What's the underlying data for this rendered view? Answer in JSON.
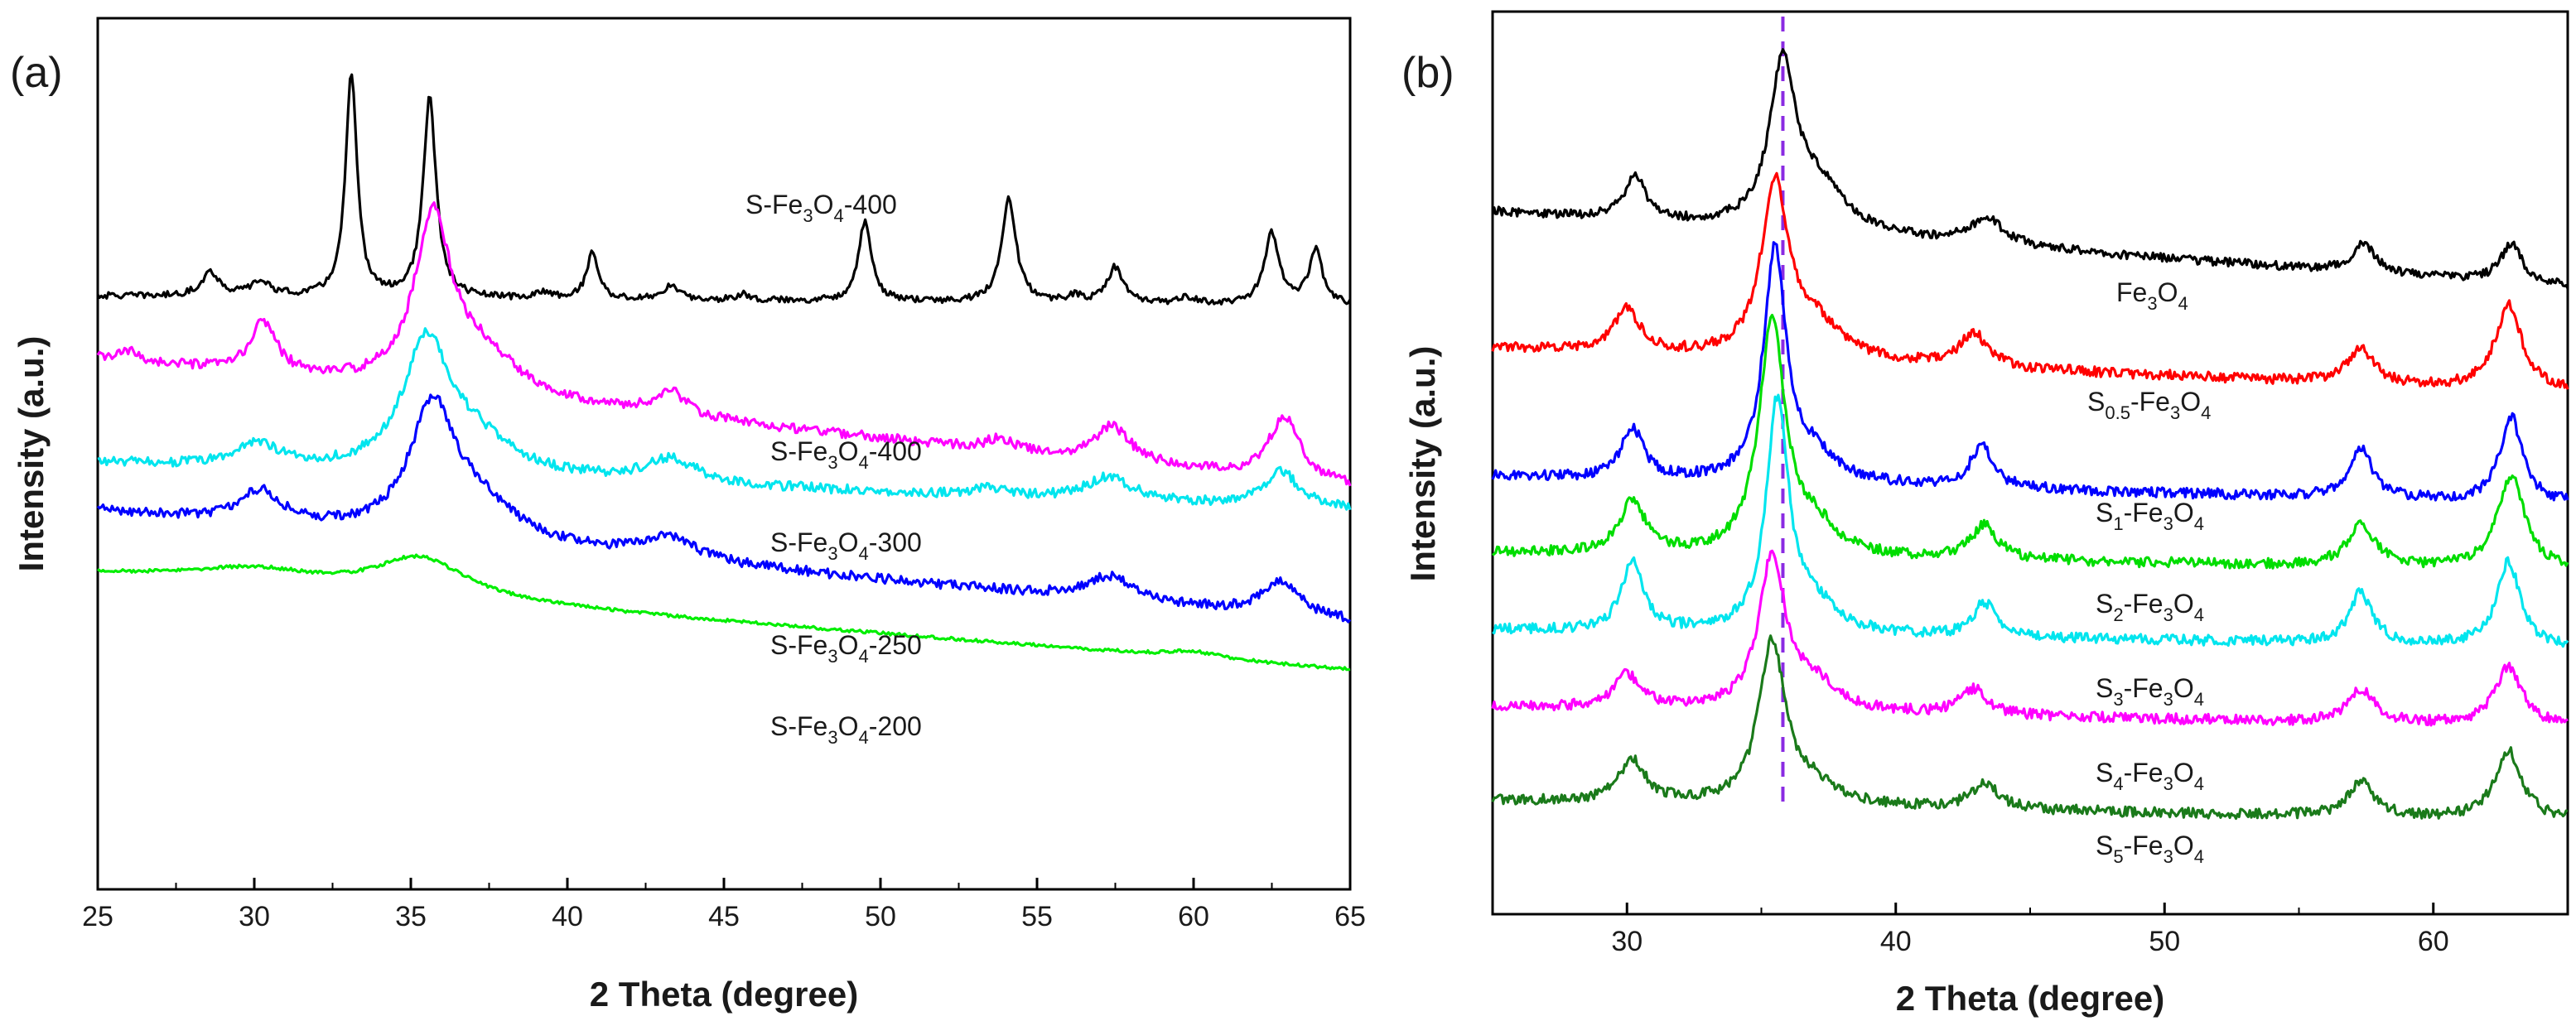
{
  "chart_data": [
    {
      "type": "line",
      "panel_label": "(a)",
      "xlabel": "2 Theta (degree)",
      "ylabel": "Intensity (a.u.)",
      "xlim": [
        25,
        65
      ],
      "x_ticks": [
        25,
        30,
        35,
        40,
        45,
        50,
        55,
        60,
        65
      ],
      "y_ticks_shown": false,
      "ylim_offset_units": [
        0,
        1
      ],
      "series": [
        {
          "label_parts": [
            "S-Fe",
            "3",
            "O",
            "4",
            "-400"
          ],
          "color": "#000000",
          "baseline": 0.69,
          "slope": -0.0003,
          "noise": 0.004,
          "peaks": [
            [
              28.6,
              0.03,
              0.35
            ],
            [
              30.2,
              0.018,
              0.4
            ],
            [
              33.1,
              0.28,
              0.22
            ],
            [
              35.6,
              0.25,
              0.25
            ],
            [
              39.3,
              0.008,
              0.3
            ],
            [
              40.8,
              0.06,
              0.22
            ],
            [
              43.3,
              0.018,
              0.3
            ],
            [
              45.6,
              0.008,
              0.3
            ],
            [
              49.5,
              0.1,
              0.25
            ],
            [
              54.1,
              0.13,
              0.28
            ],
            [
              56.2,
              0.008,
              0.3
            ],
            [
              57.5,
              0.045,
              0.3
            ],
            [
              59.8,
              0.008,
              0.3
            ],
            [
              62.5,
              0.09,
              0.28
            ],
            [
              63.9,
              0.07,
              0.25
            ]
          ]
        },
        {
          "label_parts": [
            "S-Fe",
            "3",
            "O",
            "4",
            "-400"
          ],
          "color": "#ff00ff",
          "baseline": 0.61,
          "slope": -0.004,
          "noise": 0.006,
          "peaks": [
            [
              26,
              0.012,
              0.4
            ],
            [
              30.3,
              0.065,
              0.5
            ],
            [
              35.7,
              0.21,
              0.7
            ],
            [
              37.2,
              0.05,
              1.5
            ],
            [
              43.3,
              0.03,
              0.6
            ],
            [
              53.8,
              0.015,
              0.5
            ],
            [
              57.4,
              0.045,
              0.7
            ],
            [
              62.9,
              0.08,
              0.6
            ]
          ]
        },
        {
          "label_parts": [
            "S-Fe",
            "3",
            "O",
            "4",
            "-300"
          ],
          "color": "#00e5ee",
          "baseline": 0.48,
          "slope": -0.0015,
          "noise": 0.006,
          "peaks": [
            [
              30.1,
              0.03,
              0.8
            ],
            [
              35.5,
              0.16,
              0.9
            ],
            [
              37,
              0.04,
              1.5
            ],
            [
              43.3,
              0.03,
              1.0
            ],
            [
              53.5,
              0.01,
              0.6
            ],
            [
              57.3,
              0.03,
              0.9
            ],
            [
              62.8,
              0.045,
              0.7
            ]
          ]
        },
        {
          "label_parts": [
            "S-Fe",
            "3",
            "O",
            "4",
            "-250"
          ],
          "color": "#0000ff",
          "baseline": 0.42,
          "slope": -0.0035,
          "noise": 0.006,
          "peaks": [
            [
              30.2,
              0.04,
              0.8
            ],
            [
              35.7,
              0.16,
              0.9
            ],
            [
              37.2,
              0.04,
              1.5
            ],
            [
              43.2,
              0.03,
              1.0
            ],
            [
              57.3,
              0.03,
              0.9
            ],
            [
              62.8,
              0.045,
              0.7
            ]
          ]
        },
        {
          "label_parts": [
            "S-Fe",
            "3",
            "O",
            "4",
            "-200"
          ],
          "color": "#00ee00",
          "baseline": 0.34,
          "slope": -0.003,
          "noise": 0.002,
          "peaks": [
            [
              30,
              0.02,
              2.5
            ],
            [
              35.3,
              0.05,
              1.8
            ],
            [
              60,
              0.008,
              1.0
            ]
          ]
        }
      ]
    },
    {
      "type": "line",
      "panel_label": "(b)",
      "xlabel": "2 Theta (degree)",
      "ylabel": "Intensity (a.u.)",
      "xlim": [
        25,
        65
      ],
      "x_ticks": [
        30,
        40,
        50,
        60
      ],
      "y_ticks_shown": false,
      "reference_line": {
        "x": 35.8,
        "color": "#8a2be2",
        "style": "dashed"
      },
      "ylim_offset_units": [
        0,
        1
      ],
      "series": [
        {
          "label_parts": [
            "Fe",
            "3",
            "O",
            "4",
            ""
          ],
          "color": "#000000",
          "baseline": 0.8,
          "slope": -0.0022,
          "noise": 0.005,
          "peaks": [
            [
              30.3,
              0.05,
              0.5
            ],
            [
              35.8,
              0.19,
              0.6
            ],
            [
              37.2,
              0.05,
              1.2
            ],
            [
              43.4,
              0.03,
              0.8
            ],
            [
              57.4,
              0.035,
              0.5
            ],
            [
              62.9,
              0.045,
              0.5
            ]
          ]
        },
        {
          "label_parts": [
            "S",
            "0.5",
            "-Fe",
            "3",
            "O",
            "4"
          ],
          "color": "#ff0000",
          "baseline": 0.64,
          "slope": -0.0013,
          "noise": 0.006,
          "peaks": [
            [
              30,
              0.05,
              0.6
            ],
            [
              35.5,
              0.2,
              0.6
            ],
            [
              37,
              0.04,
              1.2
            ],
            [
              42.9,
              0.04,
              0.6
            ],
            [
              57.3,
              0.04,
              0.6
            ],
            [
              62.8,
              0.1,
              0.6
            ]
          ]
        },
        {
          "label_parts": [
            "S",
            "1",
            "-Fe",
            "3",
            "O",
            "4"
          ],
          "color": "#0000ff",
          "baseline": 0.49,
          "slope": -0.0008,
          "noise": 0.006,
          "peaks": [
            [
              30.2,
              0.06,
              0.5
            ],
            [
              35.5,
              0.27,
              0.5
            ],
            [
              37,
              0.03,
              1.0
            ],
            [
              43.2,
              0.05,
              0.5
            ],
            [
              57.3,
              0.06,
              0.5
            ],
            [
              62.9,
              0.1,
              0.5
            ]
          ]
        },
        {
          "label_parts": [
            "S",
            "2",
            "-Fe",
            "3",
            "O",
            "4"
          ],
          "color": "#00dd00",
          "baseline": 0.4,
          "slope": -0.0005,
          "noise": 0.006,
          "peaks": [
            [
              30.2,
              0.06,
              0.6
            ],
            [
              35.4,
              0.27,
              0.6
            ],
            [
              37,
              0.03,
              1.0
            ],
            [
              43.3,
              0.04,
              0.6
            ],
            [
              57.3,
              0.05,
              0.6
            ],
            [
              62.9,
              0.11,
              0.6
            ]
          ]
        },
        {
          "label_parts": [
            "S",
            "3",
            "-Fe",
            "3",
            "O",
            "4"
          ],
          "color": "#00e5ee",
          "baseline": 0.31,
          "slope": -0.0005,
          "noise": 0.006,
          "peaks": [
            [
              30.2,
              0.08,
              0.5
            ],
            [
              35.6,
              0.27,
              0.5
            ],
            [
              37,
              0.03,
              1.0
            ],
            [
              43.3,
              0.04,
              0.5
            ],
            [
              57.3,
              0.06,
              0.5
            ],
            [
              62.8,
              0.1,
              0.5
            ]
          ]
        },
        {
          "label_parts": [
            "S",
            "4",
            "-Fe",
            "3",
            "O",
            "4"
          ],
          "color": "#ff00ff",
          "baseline": 0.22,
          "slope": -0.0006,
          "noise": 0.006,
          "peaks": [
            [
              30,
              0.04,
              0.6
            ],
            [
              35.4,
              0.18,
              0.6
            ],
            [
              37,
              0.03,
              1.0
            ],
            [
              42.9,
              0.03,
              0.6
            ],
            [
              57.3,
              0.04,
              0.6
            ],
            [
              62.8,
              0.07,
              0.6
            ]
          ]
        },
        {
          "label_parts": [
            "S",
            "5",
            "-Fe",
            "3",
            "O",
            "4"
          ],
          "color": "#1a7a1a",
          "baseline": 0.11,
          "slope": -0.0006,
          "noise": 0.006,
          "peaks": [
            [
              30.2,
              0.05,
              0.6
            ],
            [
              35.4,
              0.19,
              0.6
            ],
            [
              37,
              0.02,
              1.0
            ],
            [
              43.3,
              0.03,
              0.6
            ],
            [
              57.3,
              0.04,
              0.6
            ],
            [
              62.8,
              0.08,
              0.6
            ]
          ]
        }
      ]
    }
  ]
}
